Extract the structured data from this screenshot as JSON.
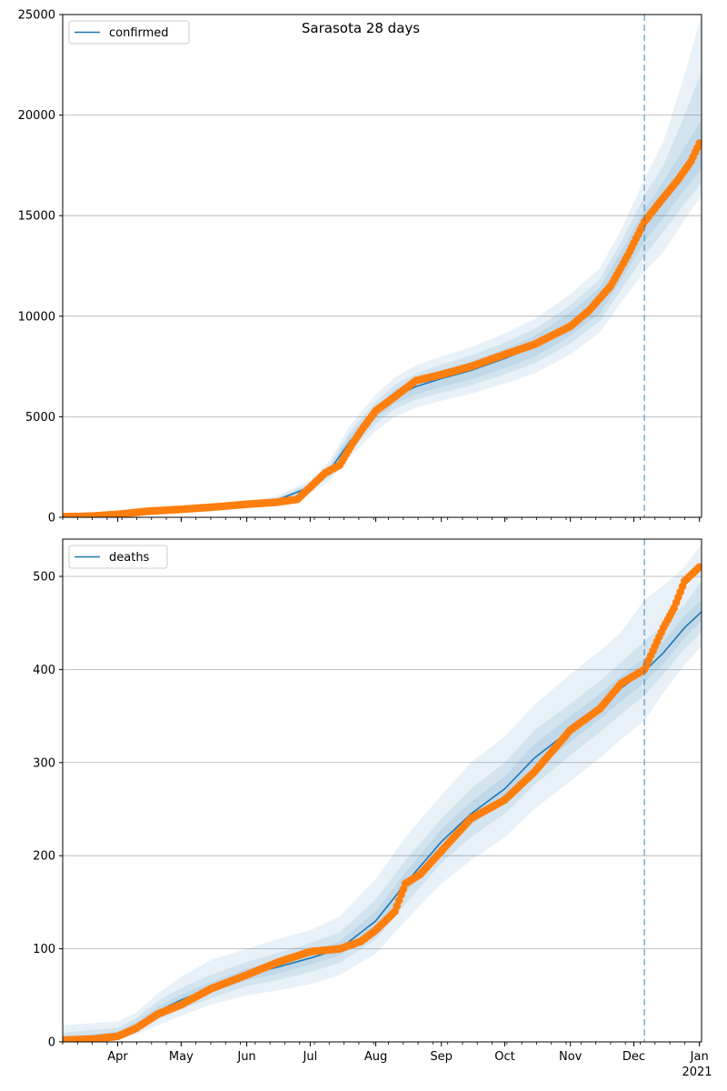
{
  "title": "Sarasota 28 days",
  "colors": {
    "model_line": "#1f77b4",
    "observed": "#ff7f0e",
    "band": "#1f77b4",
    "grid": "#b0b0b0",
    "forecast_line": "#1f77b4"
  },
  "x_axis": {
    "month_labels": [
      {
        "label": "Apr",
        "date": "2020-04-01"
      },
      {
        "label": "May",
        "date": "2020-05-01"
      },
      {
        "label": "Jun",
        "date": "2020-06-01"
      },
      {
        "label": "Jul",
        "date": "2020-07-01"
      },
      {
        "label": "Aug",
        "date": "2020-08-01"
      },
      {
        "label": "Sep",
        "date": "2020-09-01"
      },
      {
        "label": "Oct",
        "date": "2020-10-01"
      },
      {
        "label": "Nov",
        "date": "2020-11-01"
      },
      {
        "label": "Dec",
        "date": "2020-12-01"
      },
      {
        "label": "Jan",
        "date": "2021-01-01"
      }
    ],
    "year_label": "2021",
    "range": [
      "2020-03-06",
      "2021-01-02"
    ],
    "forecast_start": "2020-12-06"
  },
  "chart_data": [
    {
      "type": "line",
      "legend": "confirmed",
      "legend_position": "top-left",
      "grid": "horizontal",
      "ylim": [
        0,
        25000
      ],
      "yticks": [
        0,
        5000,
        10000,
        15000,
        20000,
        25000
      ],
      "ytick_labels": [
        "0",
        "5000",
        "10000",
        "15000",
        "20000",
        "25000"
      ],
      "model": {
        "x": [
          "2020-03-06",
          "2020-04-01",
          "2020-05-01",
          "2020-06-01",
          "2020-06-15",
          "2020-07-01",
          "2020-07-10",
          "2020-07-20",
          "2020-08-01",
          "2020-08-10",
          "2020-08-20",
          "2020-09-01",
          "2020-09-15",
          "2020-10-01",
          "2020-10-15",
          "2020-11-01",
          "2020-11-15",
          "2020-11-25",
          "2020-12-06",
          "2020-12-15",
          "2020-12-25",
          "2021-01-02"
        ],
        "y": [
          30,
          120,
          350,
          650,
          850,
          1500,
          2300,
          3800,
          5200,
          6000,
          6500,
          6900,
          7300,
          7900,
          8500,
          9600,
          10800,
          12500,
          14500,
          15800,
          17300,
          18500
        ]
      },
      "bands": [
        {
          "lo": [
            0,
            80,
            260,
            520,
            680,
            1200,
            1800,
            3000,
            4300,
            5000,
            5450,
            5800,
            6150,
            6650,
            7150,
            8100,
            9200,
            10700,
            12200,
            13200,
            14800,
            16000
          ],
          "hi": [
            60,
            180,
            460,
            800,
            1050,
            1850,
            2800,
            4600,
            6100,
            6950,
            7550,
            8000,
            8450,
            9150,
            9850,
            11100,
            12400,
            14300,
            16800,
            18700,
            22000,
            25000
          ]
        },
        {
          "lo": [
            5,
            95,
            290,
            570,
            740,
            1320,
            2000,
            3300,
            4650,
            5400,
            5850,
            6200,
            6550,
            7100,
            7650,
            8650,
            9750,
            11300,
            13000,
            14200,
            15600,
            16600
          ],
          "hi": [
            50,
            155,
            420,
            740,
            970,
            1700,
            2600,
            4300,
            5750,
            6600,
            7150,
            7600,
            8050,
            8700,
            9350,
            10550,
            11850,
            13700,
            16000,
            17500,
            20000,
            22200
          ]
        },
        {
          "lo": [
            12,
            105,
            315,
            600,
            785,
            1400,
            2120,
            3500,
            4900,
            5650,
            6120,
            6480,
            6850,
            7420,
            7980,
            9020,
            10150,
            11800,
            13700,
            14900,
            16300,
            17300
          ],
          "hi": [
            42,
            138,
            390,
            700,
            920,
            1600,
            2480,
            4100,
            5500,
            6350,
            6880,
            7320,
            7750,
            8380,
            9020,
            10180,
            11450,
            13200,
            15300,
            16700,
            18400,
            19800
          ]
        }
      ],
      "observed": {
        "x": [
          "2020-03-06",
          "2020-03-20",
          "2020-04-01",
          "2020-04-15",
          "2020-05-01",
          "2020-05-15",
          "2020-06-01",
          "2020-06-15",
          "2020-06-25",
          "2020-07-01",
          "2020-07-08",
          "2020-07-15",
          "2020-07-20",
          "2020-07-25",
          "2020-08-01",
          "2020-08-10",
          "2020-08-20",
          "2020-09-01",
          "2020-09-15",
          "2020-10-01",
          "2020-10-15",
          "2020-11-01",
          "2020-11-10",
          "2020-11-20",
          "2020-11-28",
          "2020-12-06",
          "2020-12-15",
          "2020-12-22",
          "2020-12-28",
          "2021-01-01"
        ],
        "y": [
          30,
          60,
          150,
          300,
          400,
          500,
          650,
          750,
          900,
          1500,
          2200,
          2600,
          3500,
          4300,
          5300,
          6000,
          6800,
          7100,
          7500,
          8100,
          8600,
          9500,
          10300,
          11500,
          13000,
          14700,
          15900,
          16800,
          17700,
          18600
        ]
      }
    },
    {
      "type": "line",
      "legend": "deaths",
      "legend_position": "top-left",
      "grid": "horizontal",
      "ylim": [
        0,
        540
      ],
      "yticks": [
        0,
        100,
        200,
        300,
        400,
        500
      ],
      "ytick_labels": [
        "0",
        "100",
        "200",
        "300",
        "400",
        "500"
      ],
      "model": {
        "x": [
          "2020-03-06",
          "2020-04-01",
          "2020-04-10",
          "2020-04-20",
          "2020-05-01",
          "2020-05-15",
          "2020-06-01",
          "2020-06-15",
          "2020-07-01",
          "2020-07-15",
          "2020-08-01",
          "2020-08-15",
          "2020-09-01",
          "2020-09-15",
          "2020-10-01",
          "2020-10-15",
          "2020-11-01",
          "2020-11-15",
          "2020-11-25",
          "2020-12-06",
          "2020-12-15",
          "2020-12-25",
          "2021-01-02"
        ],
        "y": [
          1,
          8,
          18,
          33,
          45,
          58,
          72,
          80,
          90,
          100,
          130,
          170,
          215,
          245,
          272,
          305,
          335,
          360,
          380,
          398,
          418,
          445,
          462
        ]
      },
      "bands": [
        {
          "lo": [
            0,
            3,
            8,
            18,
            28,
            40,
            50,
            55,
            62,
            72,
            95,
            130,
            170,
            195,
            220,
            250,
            280,
            305,
            325,
            345,
            375,
            405,
            425
          ],
          "hi": [
            18,
            22,
            32,
            52,
            70,
            88,
            100,
            110,
            120,
            135,
            175,
            220,
            265,
            300,
            328,
            362,
            395,
            420,
            440,
            475,
            490,
            510,
            535
          ]
        },
        {
          "lo": [
            0,
            5,
            12,
            24,
            35,
            47,
            60,
            66,
            75,
            85,
            110,
            148,
            192,
            220,
            245,
            276,
            308,
            333,
            352,
            372,
            395,
            422,
            440
          ],
          "hi": [
            10,
            15,
            26,
            44,
            58,
            72,
            86,
            95,
            106,
            118,
            153,
            195,
            240,
            272,
            300,
            335,
            363,
            388,
            408,
            430,
            448,
            470,
            495
          ]
        },
        {
          "lo": [
            0,
            6,
            14,
            28,
            40,
            53,
            66,
            73,
            83,
            93,
            122,
            160,
            204,
            233,
            260,
            292,
            322,
            347,
            366,
            386,
            406,
            434,
            452
          ],
          "hi": [
            5,
            11,
            22,
            38,
            51,
            64,
            79,
            87,
            97,
            108,
            140,
            182,
            228,
            258,
            285,
            320,
            350,
            374,
            394,
            412,
            430,
            458,
            475
          ]
        }
      ],
      "observed": {
        "x": [
          "2020-03-06",
          "2020-03-20",
          "2020-04-01",
          "2020-04-10",
          "2020-04-20",
          "2020-05-01",
          "2020-05-15",
          "2020-06-01",
          "2020-06-15",
          "2020-07-01",
          "2020-07-15",
          "2020-07-25",
          "2020-08-01",
          "2020-08-10",
          "2020-08-15",
          "2020-08-22",
          "2020-09-01",
          "2020-09-15",
          "2020-10-01",
          "2020-10-15",
          "2020-11-01",
          "2020-11-15",
          "2020-11-25",
          "2020-12-06",
          "2020-12-10",
          "2020-12-15",
          "2020-12-20",
          "2020-12-25",
          "2021-01-01"
        ],
        "y": [
          2,
          3,
          6,
          15,
          30,
          40,
          57,
          72,
          85,
          97,
          100,
          108,
          120,
          140,
          170,
          180,
          205,
          240,
          260,
          290,
          335,
          358,
          385,
          400,
          420,
          445,
          466,
          495,
          510
        ]
      }
    }
  ]
}
